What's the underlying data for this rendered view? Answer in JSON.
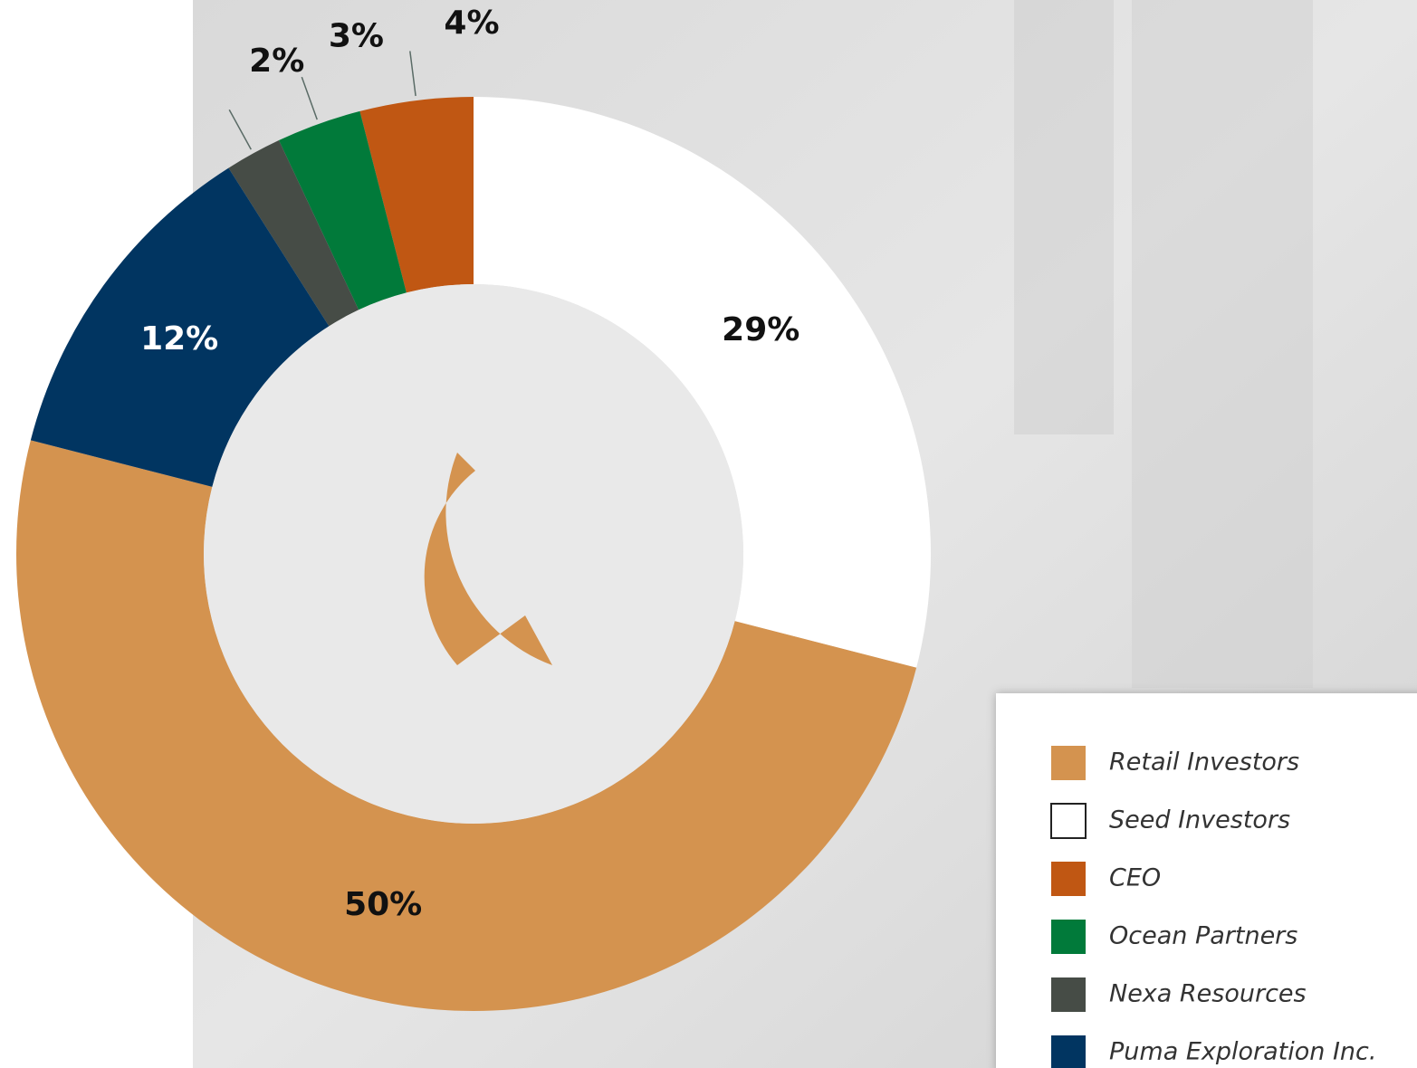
{
  "chart_data": {
    "type": "donut",
    "categories": [
      "Retail Investors",
      "Seed Investors",
      "CEO",
      "Ocean Partners",
      "Nexa Resources",
      "Puma Exploration Inc."
    ],
    "values": [
      50,
      29,
      4,
      3,
      2,
      12
    ],
    "value_labels": [
      "50%",
      "29%",
      "4%",
      "3%",
      "2%",
      "12%"
    ],
    "colors": [
      "#d4934f",
      "#ffffff",
      "#c05713",
      "#017a3a",
      "#464c46",
      "#013561"
    ],
    "legend": "bottom-right"
  }
}
